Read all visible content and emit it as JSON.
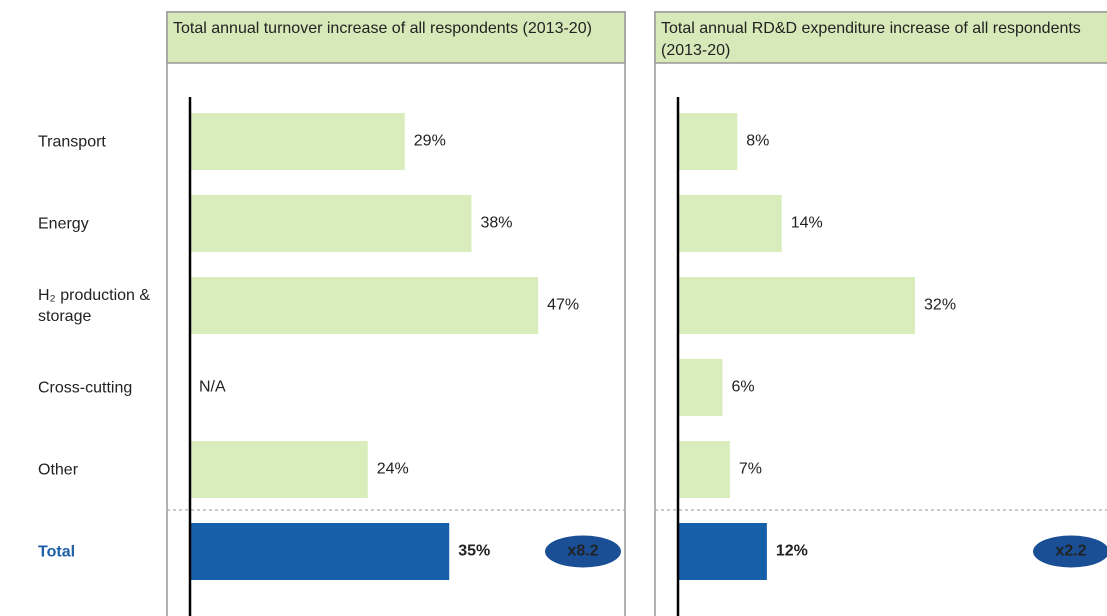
{
  "chart_data": [
    {
      "type": "bar",
      "orientation": "horizontal",
      "title": "Total annual turnover increase of all respondents (2013-20)",
      "categories": [
        "Transport",
        "Energy",
        "H₂ production & storage",
        "Cross-cutting",
        "Other",
        "Total"
      ],
      "values": [
        29,
        38,
        47,
        null,
        24,
        35
      ],
      "value_labels": [
        "29%",
        "38%",
        "47%",
        "N/A",
        "24%",
        "35%"
      ],
      "annotation": "x8.2",
      "color": "#d9ecbc",
      "total_color": "#1560a8",
      "xlim": [
        0,
        59
      ]
    },
    {
      "type": "bar",
      "orientation": "horizontal",
      "title": "Total annual RD&D expenditure increase of all respondents (2013-20)",
      "values": [
        8,
        14,
        32,
        6,
        7,
        12
      ],
      "value_labels": [
        "8%",
        "14%",
        "32%",
        "6%",
        "7%",
        "12%"
      ],
      "annotation": "x2.2",
      "color": "#d9ecbc",
      "total_color": "#1560a8",
      "xlim": [
        0,
        59
      ]
    }
  ]
}
